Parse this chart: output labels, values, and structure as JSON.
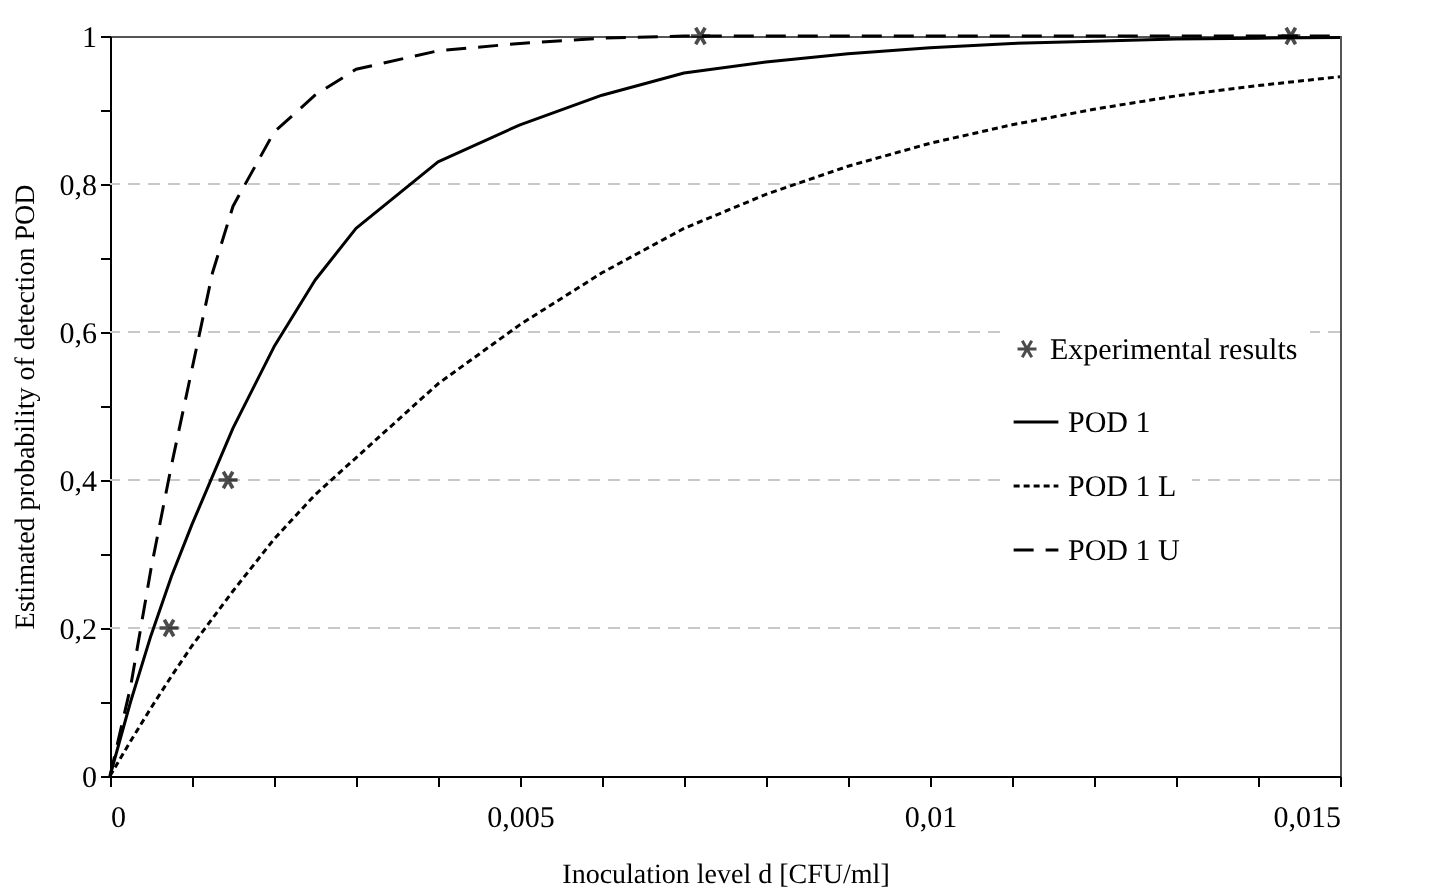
{
  "chart_data": {
    "type": "line",
    "xlabel": "Inoculation level d  [CFU/ml]",
    "ylabel": "Estimated probability of detection  POD",
    "xlim": [
      0,
      0.015
    ],
    "ylim": [
      0,
      1
    ],
    "xticks": [
      0,
      {
        "value": 0.001,
        "label": null
      },
      {
        "value": 0.002,
        "label": null
      },
      {
        "value": 0.003,
        "label": null
      },
      {
        "value": 0.004,
        "label": null
      },
      {
        "value": 0.005,
        "label": "0,005"
      },
      {
        "value": 0.006,
        "label": null
      },
      {
        "value": 0.007,
        "label": null
      },
      {
        "value": 0.008,
        "label": null
      },
      {
        "value": 0.009,
        "label": null
      },
      {
        "value": 0.01,
        "label": "0,01"
      },
      {
        "value": 0.011,
        "label": null
      },
      {
        "value": 0.012,
        "label": null
      },
      {
        "value": 0.013,
        "label": null
      },
      {
        "value": 0.014,
        "label": null
      },
      {
        "value": 0.015,
        "label": "0,015"
      }
    ],
    "yticks": [
      0,
      {
        "value": 0.1,
        "label": null
      },
      {
        "value": 0.2,
        "label": "0,2"
      },
      {
        "value": 0.3,
        "label": null
      },
      {
        "value": 0.4,
        "label": "0,4"
      },
      {
        "value": 0.5,
        "label": null
      },
      {
        "value": 0.6,
        "label": "0,6"
      },
      {
        "value": 0.7,
        "label": null
      },
      {
        "value": 0.8,
        "label": "0,8"
      },
      {
        "value": 0.9,
        "label": null
      },
      1
    ],
    "grid": "y",
    "legend": "right",
    "series": [
      {
        "name": "Experimental results",
        "type": "scatter",
        "marker": "cross",
        "color": "#000000",
        "x": [
          0.00072,
          0.00144,
          0.0072,
          0.0144
        ],
        "values": [
          0.2,
          0.4,
          1,
          1
        ]
      },
      {
        "name": "POD 1",
        "line_style": "solid",
        "color": "#000000",
        "x": [
          0,
          0.00025,
          0.0005,
          0.00075,
          0.001,
          0.0015,
          0.002,
          0.0025,
          0.003,
          0.004,
          0.005,
          0.006,
          0.007,
          0.008,
          0.009,
          0.01,
          0.011,
          0.012,
          0.013,
          0.014,
          0.015
        ],
        "values": [
          0,
          0.1,
          0.19,
          0.27,
          0.34,
          0.47,
          0.58,
          0.67,
          0.74,
          0.83,
          0.88,
          0.92,
          0.95,
          0.965,
          0.976,
          0.984,
          0.99,
          0.993,
          0.996,
          0.997,
          0.998
        ]
      },
      {
        "name": "POD 1 L",
        "line_style": "dotted",
        "color": "#000000",
        "x": [
          0,
          0.00025,
          0.0005,
          0.00075,
          0.001,
          0.0015,
          0.002,
          0.0025,
          0.003,
          0.004,
          0.005,
          0.006,
          0.007,
          0.008,
          0.009,
          0.01,
          0.011,
          0.012,
          0.013,
          0.014,
          0.015
        ],
        "values": [
          0,
          0.047,
          0.092,
          0.135,
          0.176,
          0.25,
          0.32,
          0.38,
          0.43,
          0.53,
          0.61,
          0.68,
          0.74,
          0.786,
          0.824,
          0.855,
          0.88,
          0.901,
          0.919,
          0.933,
          0.945
        ]
      },
      {
        "name": "POD 1 U",
        "line_style": "dashed",
        "color": "#000000",
        "x": [
          0,
          0.00025,
          0.0005,
          0.00075,
          0.001,
          0.00125,
          0.0015,
          0.002,
          0.0025,
          0.003,
          0.004,
          0.005,
          0.006,
          0.007,
          0.008,
          0.009,
          0.01,
          0.011,
          0.012,
          0.013,
          0.014,
          0.015
        ],
        "values": [
          0,
          0.12,
          0.28,
          0.42,
          0.55,
          0.68,
          0.77,
          0.87,
          0.92,
          0.955,
          0.98,
          0.99,
          0.997,
          1,
          1,
          1,
          1,
          1,
          1,
          1,
          1,
          1
        ]
      }
    ]
  }
}
